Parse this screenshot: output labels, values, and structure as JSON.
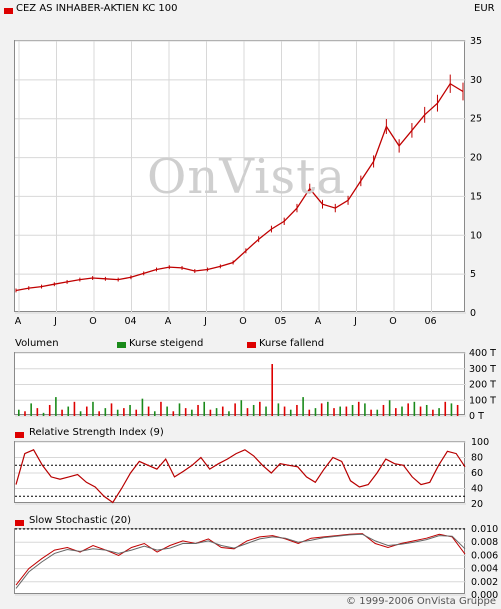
{
  "header": {
    "title": "CEZ AS INHABER-AKTIEN KC 100",
    "currency": "EUR",
    "title_color": "#dd0000"
  },
  "watermark": "OnVista",
  "copyright": "© 1999-2006 OnVista Gruppe",
  "colors": {
    "price_line": "#c00000",
    "up": "#1a8a1a",
    "down": "#dd0000",
    "rsi_line": "#b80000",
    "stoch_k": "#c00000",
    "stoch_d": "#666666",
    "grid": "#d8d8d8"
  },
  "volume": {
    "title": "Volumen",
    "legend_up": "Kurse steigend",
    "legend_down": "Kurse fallend"
  },
  "rsi": {
    "title": "Relative Strength Index (9)"
  },
  "stochastic": {
    "title": "Slow Stochastic (20)"
  },
  "chart_data": [
    {
      "type": "line",
      "name": "price",
      "title": "CEZ AS INHABER-AKTIEN KC 100",
      "ylabel": "EUR",
      "ylim": [
        0,
        35
      ],
      "yticks": [
        0,
        5,
        10,
        15,
        20,
        25,
        30,
        35
      ],
      "xticks": [
        "A",
        "J",
        "O",
        "04",
        "A",
        "J",
        "O",
        "05",
        "A",
        "J",
        "O",
        "06"
      ],
      "grid": true,
      "x": [
        "2003-04",
        "2003-05",
        "2003-06",
        "2003-07",
        "2003-08",
        "2003-09",
        "2003-10",
        "2003-11",
        "2003-12",
        "2004-01",
        "2004-02",
        "2004-03",
        "2004-04",
        "2004-05",
        "2004-06",
        "2004-07",
        "2004-08",
        "2004-09",
        "2004-10",
        "2004-11",
        "2004-12",
        "2005-01",
        "2005-02",
        "2005-03",
        "2005-04",
        "2005-05",
        "2005-06",
        "2005-07",
        "2005-08",
        "2005-09",
        "2005-10",
        "2005-11",
        "2005-12",
        "2006-01",
        "2006-02",
        "2006-03"
      ],
      "values": [
        2.9,
        3.2,
        3.4,
        3.7,
        4.0,
        4.3,
        4.5,
        4.4,
        4.3,
        4.6,
        5.1,
        5.6,
        5.9,
        5.8,
        5.4,
        5.6,
        6.0,
        6.5,
        8.0,
        9.5,
        10.8,
        11.8,
        13.5,
        16.0,
        14.0,
        13.5,
        14.5,
        17.0,
        19.5,
        24.0,
        21.5,
        23.5,
        25.5,
        27.0,
        29.5,
        28.5
      ]
    },
    {
      "type": "bar",
      "name": "volume",
      "ylabel": "T",
      "ylim": [
        0,
        400
      ],
      "yticks": [
        "0 T",
        "100 T",
        "200 T",
        "300 T",
        "400 T"
      ],
      "series": [
        {
          "name": "Kurse steigend",
          "values": [
            40,
            80,
            20,
            120,
            60,
            30,
            90,
            50,
            40,
            70,
            110,
            30,
            60,
            80,
            40,
            90,
            50,
            30,
            100,
            70,
            60,
            80,
            40,
            120,
            50,
            90,
            60,
            70,
            80,
            40,
            100,
            60,
            90,
            70,
            50,
            80
          ]
        },
        {
          "name": "Kurse fallend",
          "values": [
            30,
            50,
            70,
            40,
            90,
            60,
            30,
            80,
            50,
            40,
            60,
            90,
            30,
            50,
            70,
            40,
            60,
            80,
            50,
            90,
            330,
            60,
            70,
            40,
            80,
            50,
            60,
            90,
            40,
            70,
            50,
            80,
            60,
            40,
            90,
            70
          ]
        }
      ]
    },
    {
      "type": "line",
      "name": "rsi",
      "title": "Relative Strength Index (9)",
      "ylim": [
        20,
        100
      ],
      "yticks": [
        20,
        40,
        60,
        80,
        100
      ],
      "reference_lines": [
        30,
        70
      ],
      "values": [
        45,
        85,
        90,
        70,
        55,
        52,
        55,
        58,
        48,
        42,
        30,
        22,
        40,
        60,
        75,
        70,
        65,
        78,
        55,
        62,
        70,
        80,
        65,
        72,
        78,
        85,
        90,
        82,
        70,
        60,
        72,
        70,
        68,
        55,
        48,
        65,
        80,
        75,
        50,
        42,
        45,
        60,
        78,
        72,
        70,
        55,
        45,
        48,
        70,
        88,
        85,
        68
      ]
    },
    {
      "type": "line",
      "name": "stochastic",
      "title": "Slow Stochastic (20)",
      "ylim": [
        0,
        0.01
      ],
      "yticks": [
        0.0,
        0.002,
        0.004,
        0.006,
        0.008,
        0.01
      ],
      "series": [
        {
          "name": "%K",
          "values": [
            0.0015,
            0.004,
            0.0055,
            0.0068,
            0.0072,
            0.0065,
            0.0075,
            0.0068,
            0.006,
            0.0072,
            0.0078,
            0.0065,
            0.0075,
            0.0082,
            0.0078,
            0.0085,
            0.0072,
            0.007,
            0.0082,
            0.0088,
            0.009,
            0.0085,
            0.0078,
            0.0086,
            0.0088,
            0.009,
            0.0092,
            0.0093,
            0.0078,
            0.0072,
            0.0078,
            0.0082,
            0.0086,
            0.0092,
            0.0088,
            0.0062
          ]
        },
        {
          "name": "%D",
          "values": [
            0.001,
            0.0035,
            0.005,
            0.0063,
            0.0069,
            0.0066,
            0.007,
            0.0068,
            0.0063,
            0.0068,
            0.0074,
            0.0068,
            0.0071,
            0.0078,
            0.0078,
            0.0082,
            0.0075,
            0.0071,
            0.0078,
            0.0085,
            0.0088,
            0.0086,
            0.008,
            0.0083,
            0.0087,
            0.0089,
            0.0091,
            0.0092,
            0.0082,
            0.0075,
            0.0077,
            0.008,
            0.0084,
            0.009,
            0.0089,
            0.007
          ]
        }
      ]
    }
  ]
}
